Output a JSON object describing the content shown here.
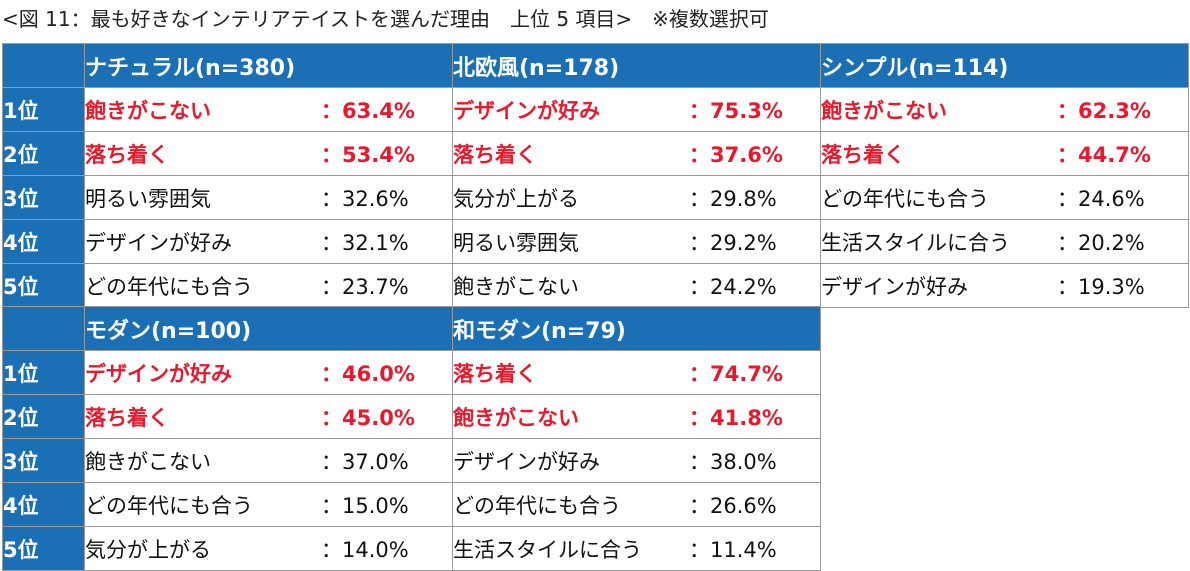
{
  "caption": "<図 11：最も好きなインテリアテイストを選んだ理由　上位 5 項目>　※複数選択可",
  "ranks": [
    "1位",
    "2位",
    "3位",
    "4位",
    "5位"
  ],
  "table1": {
    "headers": [
      "ナチュラル(n=380)",
      "北欧風(n=178)",
      "シンプル(n=114)"
    ],
    "rows": [
      [
        [
          "飽きがこない",
          "：63.4%"
        ],
        [
          "デザインが好み",
          "：75.3%"
        ],
        [
          "飽きがこない",
          "：62.3%"
        ]
      ],
      [
        [
          "落ち着く",
          "：53.4%"
        ],
        [
          "落ち着く",
          "：37.6%"
        ],
        [
          "落ち着く",
          "：44.7%"
        ]
      ],
      [
        [
          "明るい雰囲気",
          "：32.6%"
        ],
        [
          "気分が上がる",
          "：29.8%"
        ],
        [
          "どの年代にも合う",
          "：24.6%"
        ]
      ],
      [
        [
          "デザインが好み",
          "：32.1%"
        ],
        [
          "明るい雰囲気",
          "：29.2%"
        ],
        [
          "生活スタイルに合う",
          "：20.2%"
        ]
      ],
      [
        [
          "どの年代にも合う",
          "：23.7%"
        ],
        [
          "飽きがこない",
          "：24.2%"
        ],
        [
          "デザインが好み",
          "：19.3%"
        ]
      ]
    ]
  },
  "table2": {
    "headers": [
      "モダン(n=100)",
      "和モダン(n=79)"
    ],
    "rows": [
      [
        [
          "デザインが好み",
          "：46.0%"
        ],
        [
          "落ち着く",
          "：74.7%"
        ]
      ],
      [
        [
          "落ち着く",
          "：45.0%"
        ],
        [
          "飽きがこない",
          "：41.8%"
        ]
      ],
      [
        [
          "飽きがこない",
          "：37.0%"
        ],
        [
          "デザインが好み",
          "：38.0%"
        ]
      ],
      [
        [
          "どの年代にも合う",
          "：15.0%"
        ],
        [
          "どの年代にも合う",
          "：26.6%"
        ]
      ],
      [
        [
          "気分が上がる",
          "：14.0%"
        ],
        [
          "生活スタイルに合う",
          "：11.4%"
        ]
      ]
    ]
  },
  "colors": {
    "header_bg": "#1a6fb5",
    "header_text": "#ffffff",
    "highlight": "#e8192c"
  }
}
